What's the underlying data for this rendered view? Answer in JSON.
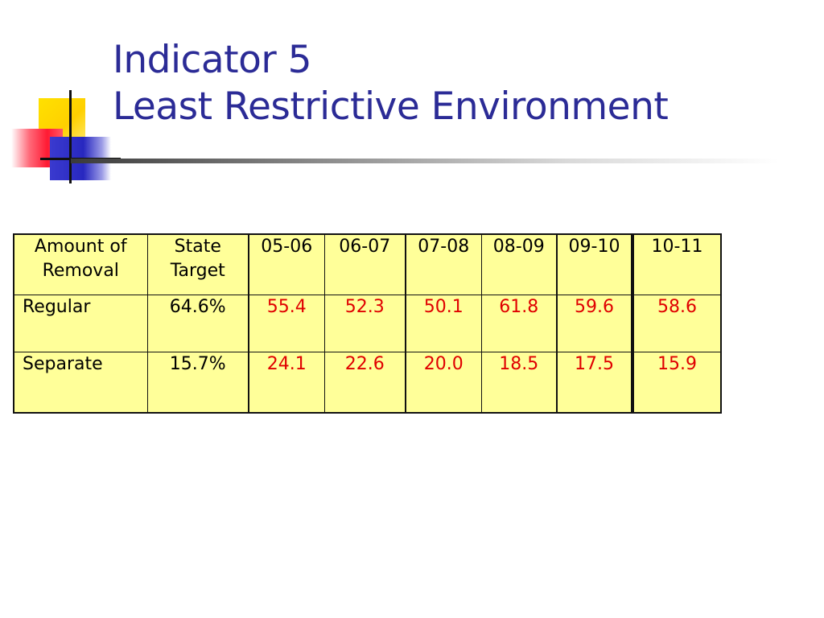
{
  "slide": {
    "title_line1": "Indicator 5",
    "title_line2": "Least Restrictive Environment"
  },
  "table": {
    "header": {
      "amount": "Amount of Removal",
      "target": "State Target"
    },
    "years": [
      "05-06",
      "06-07",
      "07-08",
      "08-09",
      "09-10",
      "10-11"
    ],
    "rows": [
      {
        "label": "Regular",
        "target": "64.6%",
        "values": [
          "55.4",
          "52.3",
          "50.1",
          "61.8",
          "59.6",
          "58.6"
        ]
      },
      {
        "label": "Separate",
        "target": "15.7%",
        "values": [
          "24.1",
          "22.6",
          "20.0",
          "18.5",
          "17.5",
          "15.9"
        ]
      }
    ]
  },
  "colors": {
    "title": "#2b2b96",
    "table_fill": "#ffff99",
    "value_text": "#e00000"
  }
}
